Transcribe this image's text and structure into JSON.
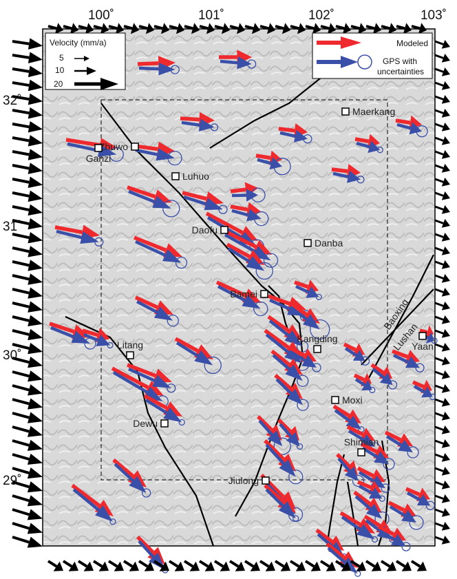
{
  "axes": {
    "x_labels": [
      "100˚",
      "101˚",
      "102˚",
      "103˚"
    ],
    "y_labels": [
      "32˚",
      "31˚",
      "30˚",
      "29˚"
    ]
  },
  "legend": {
    "title": "Velocity (mm/a)",
    "scale": [
      "5",
      "10",
      "20"
    ],
    "modeled": "Modeled",
    "gps": [
      "GPS with",
      "uncertainties"
    ]
  },
  "places": [
    "Maerkang",
    "Zhuwo",
    "Ganzi",
    "Luhuo",
    "Daofu",
    "Danba",
    "Bamei",
    "Kangding",
    "Litang",
    "Moxi",
    "Dewu",
    "Shimian",
    "Jiulong",
    "Yaan"
  ],
  "faults": [
    "Baoxing",
    "Lushan"
  ]
}
